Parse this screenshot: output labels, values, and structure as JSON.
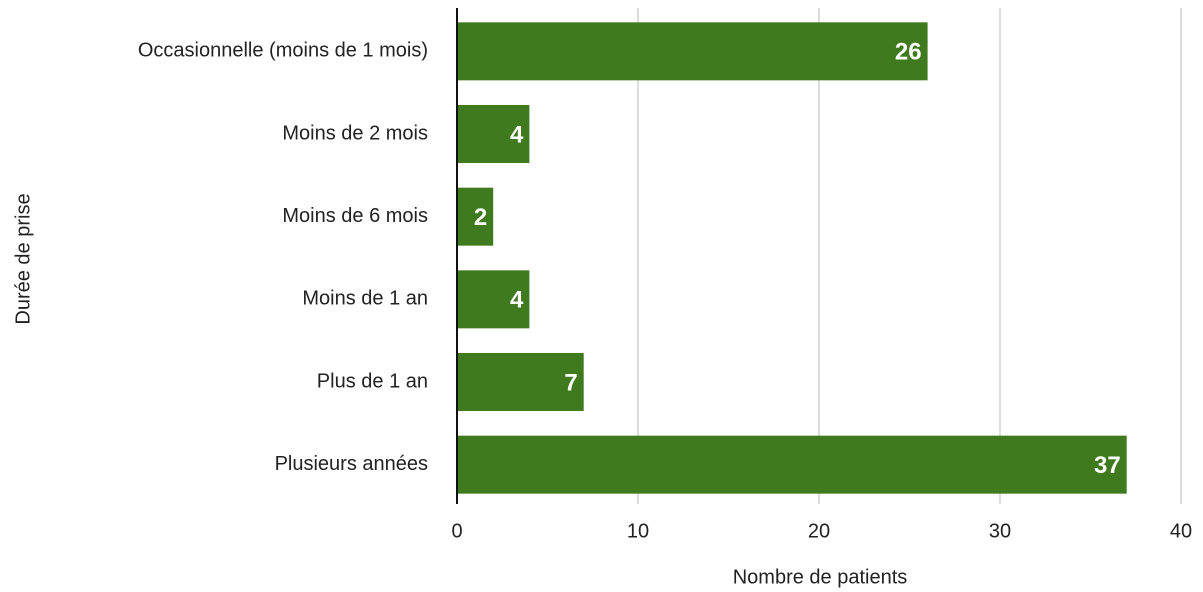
{
  "chart_data": {
    "type": "bar",
    "orientation": "horizontal",
    "xlabel": "Nombre de patients",
    "ylabel": "Durée de prise",
    "categories": [
      "Occasionnelle (moins de 1 mois)",
      "Moins de 2 mois",
      "Moins de 6 mois",
      "Moins de 1 an",
      "Plus de 1 an",
      "Plusieurs années"
    ],
    "values": [
      26,
      4,
      2,
      4,
      7,
      37
    ],
    "color": "#3f7a1e",
    "xlim": [
      0,
      40
    ],
    "xticks": [
      0,
      10,
      20,
      30,
      40
    ],
    "grid": true
  }
}
